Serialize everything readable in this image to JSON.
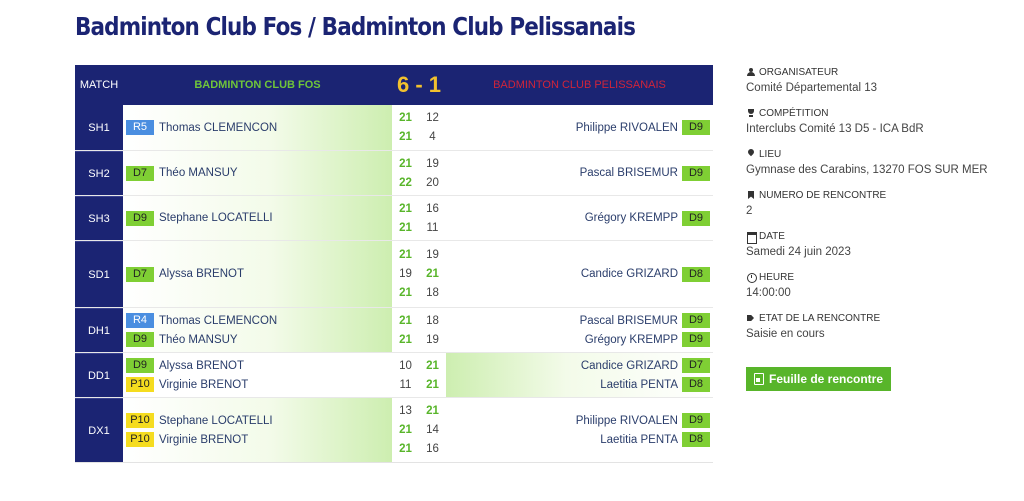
{
  "page": {
    "title": "Badminton Club Fos / Badminton Club Pelissanais"
  },
  "table": {
    "header": {
      "match_label": "MATCH",
      "home_team": "BADMINTON CLUB FOS",
      "score": "6 - 1",
      "away_team": "BADMINTON CLUB PELISSANAIS"
    },
    "matches": [
      {
        "label": "SH1",
        "winner": "home",
        "home": [
          {
            "rank": "R5",
            "rank_color": "blue",
            "name": "Thomas CLEMENCON"
          }
        ],
        "away": [
          {
            "rank": "D9",
            "rank_color": "green",
            "name": "Philippe RIVOALEN"
          }
        ],
        "sets": [
          {
            "h": "21",
            "a": "12",
            "w": "h"
          },
          {
            "h": "21",
            "a": "4",
            "w": "h"
          }
        ]
      },
      {
        "label": "SH2",
        "winner": "home",
        "home": [
          {
            "rank": "D7",
            "rank_color": "green",
            "name": "Théo MANSUY"
          }
        ],
        "away": [
          {
            "rank": "D9",
            "rank_color": "green",
            "name": "Pascal BRISEMUR"
          }
        ],
        "sets": [
          {
            "h": "21",
            "a": "19",
            "w": "h"
          },
          {
            "h": "22",
            "a": "20",
            "w": "h"
          }
        ]
      },
      {
        "label": "SH3",
        "winner": "home",
        "home": [
          {
            "rank": "D9",
            "rank_color": "green",
            "name": "Stephane LOCATELLI"
          }
        ],
        "away": [
          {
            "rank": "D9",
            "rank_color": "green",
            "name": "Grégory KREMPP"
          }
        ],
        "sets": [
          {
            "h": "21",
            "a": "16",
            "w": "h"
          },
          {
            "h": "21",
            "a": "11",
            "w": "h"
          }
        ]
      },
      {
        "label": "SD1",
        "winner": "home",
        "home": [
          {
            "rank": "D7",
            "rank_color": "green",
            "name": "Alyssa BRENOT"
          }
        ],
        "away": [
          {
            "rank": "D8",
            "rank_color": "green",
            "name": "Candice GRIZARD"
          }
        ],
        "sets": [
          {
            "h": "21",
            "a": "19",
            "w": "h"
          },
          {
            "h": "19",
            "a": "21",
            "w": "a"
          },
          {
            "h": "21",
            "a": "18",
            "w": "h"
          }
        ]
      },
      {
        "label": "DH1",
        "winner": "home",
        "home": [
          {
            "rank": "R4",
            "rank_color": "blue",
            "name": "Thomas CLEMENCON"
          },
          {
            "rank": "D9",
            "rank_color": "green",
            "name": "Théo MANSUY"
          }
        ],
        "away": [
          {
            "rank": "D9",
            "rank_color": "green",
            "name": "Pascal BRISEMUR"
          },
          {
            "rank": "D9",
            "rank_color": "green",
            "name": "Grégory KREMPP"
          }
        ],
        "sets": [
          {
            "h": "21",
            "a": "18",
            "w": "h"
          },
          {
            "h": "21",
            "a": "19",
            "w": "h"
          }
        ]
      },
      {
        "label": "DD1",
        "winner": "away",
        "home": [
          {
            "rank": "D9",
            "rank_color": "green",
            "name": "Alyssa BRENOT"
          },
          {
            "rank": "P10",
            "rank_color": "yellow",
            "name": "Virginie BRENOT"
          }
        ],
        "away": [
          {
            "rank": "D7",
            "rank_color": "green",
            "name": "Candice GRIZARD"
          },
          {
            "rank": "D8",
            "rank_color": "green",
            "name": "Laetitia PENTA"
          }
        ],
        "sets": [
          {
            "h": "10",
            "a": "21",
            "w": "a"
          },
          {
            "h": "11",
            "a": "21",
            "w": "a"
          }
        ]
      },
      {
        "label": "DX1",
        "winner": "home",
        "home": [
          {
            "rank": "P10",
            "rank_color": "yellow",
            "name": "Stephane LOCATELLI"
          },
          {
            "rank": "P10",
            "rank_color": "yellow",
            "name": "Virginie BRENOT"
          }
        ],
        "away": [
          {
            "rank": "D9",
            "rank_color": "green",
            "name": "Philippe RIVOALEN"
          },
          {
            "rank": "D8",
            "rank_color": "green",
            "name": "Laetitia PENTA"
          }
        ],
        "sets": [
          {
            "h": "13",
            "a": "21",
            "w": "a"
          },
          {
            "h": "21",
            "a": "14",
            "w": "h"
          },
          {
            "h": "21",
            "a": "16",
            "w": "h"
          }
        ]
      }
    ]
  },
  "info": {
    "organisateur_label": "ORGANISATEUR",
    "organisateur": "Comité Départemental 13",
    "competition_label": "COMPÉTITION",
    "competition": "Interclubs Comité 13 D5 - ICA BdR",
    "lieu_label": "LIEU",
    "lieu": "Gymnase des Carabins, 13270 FOS SUR MER",
    "numero_label": "NUMERO DE RENCONTRE",
    "numero": "2",
    "date_label": "DATE",
    "date": "Samedi 24 juin 2023",
    "heure_label": "HEURE",
    "heure": "14:00:00",
    "etat_label": "ETAT DE LA RENCONTRE",
    "etat": "Saisie en cours",
    "button_label": "Feuille de rencontre"
  },
  "colors": {
    "navy": "#1b2473",
    "home_team": "#6fc53a",
    "score": "#f2c12e",
    "away_team": "#d0243a",
    "rank_blue": "#4a8ee0",
    "rank_green": "#7fcf34",
    "rank_yellow": "#f5dc1f",
    "win_score": "#58b52a",
    "button": "#58b52a"
  },
  "icons": [
    "users-icon",
    "trophy-icon",
    "map-marker-icon",
    "bookmark-icon",
    "calendar-icon",
    "clock-icon",
    "tag-icon",
    "file-pdf-icon"
  ]
}
